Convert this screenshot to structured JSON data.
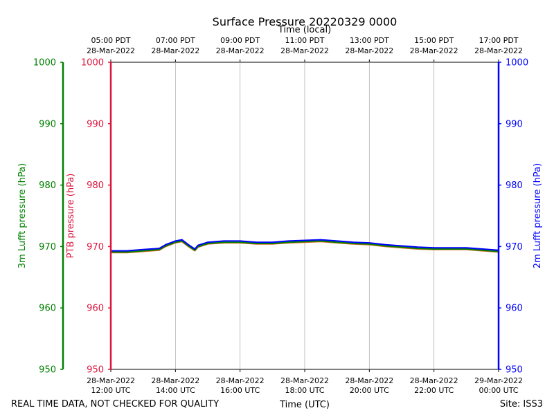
{
  "chart_data": {
    "type": "line",
    "title": "Surface Pressure 20220329 0000",
    "top_axis_title": "Time (local)",
    "xlabel": "Time (UTC)",
    "footer_left": "REAL TIME DATA, NOT CHECKED FOR QUALITY",
    "footer_right": "Site: ISS3",
    "x_range_hours": [
      12,
      24
    ],
    "ylim": [
      950,
      1000
    ],
    "y_ticks": [
      950,
      960,
      970,
      980,
      990,
      1000
    ],
    "x_ticks_utc": [
      {
        "hour": 12,
        "date": "28-Mar-2022",
        "time": "12:00 UTC"
      },
      {
        "hour": 14,
        "date": "28-Mar-2022",
        "time": "14:00 UTC"
      },
      {
        "hour": 16,
        "date": "28-Mar-2022",
        "time": "16:00 UTC"
      },
      {
        "hour": 18,
        "date": "28-Mar-2022",
        "time": "18:00 UTC"
      },
      {
        "hour": 20,
        "date": "28-Mar-2022",
        "time": "20:00 UTC"
      },
      {
        "hour": 22,
        "date": "28-Mar-2022",
        "time": "22:00 UTC"
      },
      {
        "hour": 24,
        "date": "29-Mar-2022",
        "time": "00:00 UTC"
      }
    ],
    "x_ticks_local": [
      {
        "hour": 12,
        "time": "05:00 PDT",
        "date": "28-Mar-2022"
      },
      {
        "hour": 14,
        "time": "07:00 PDT",
        "date": "28-Mar-2022"
      },
      {
        "hour": 16,
        "time": "09:00 PDT",
        "date": "28-Mar-2022"
      },
      {
        "hour": 18,
        "time": "11:00 PDT",
        "date": "28-Mar-2022"
      },
      {
        "hour": 20,
        "time": "13:00 PDT",
        "date": "28-Mar-2022"
      },
      {
        "hour": 22,
        "time": "15:00 PDT",
        "date": "28-Mar-2022"
      },
      {
        "hour": 24,
        "time": "17:00 PDT",
        "date": "28-Mar-2022"
      }
    ],
    "axes": {
      "left_outer": {
        "label": "3m Lufft pressure (hPa)",
        "color": "#008000"
      },
      "left_inner": {
        "label": "PTB pressure (hPa)",
        "color": "#dc143c"
      },
      "right": {
        "label": "2m Lufft pressure (hPa)",
        "color": "#0000ff"
      }
    },
    "series": [
      {
        "name": "PTB pressure",
        "color": "#d2691e",
        "x": [
          12.0,
          12.5,
          13.0,
          13.5,
          13.7,
          14.0,
          14.2,
          14.4,
          14.6,
          14.7,
          15.0,
          15.5,
          16.0,
          16.5,
          17.0,
          17.5,
          18.0,
          18.5,
          19.0,
          19.5,
          20.0,
          20.5,
          21.0,
          21.5,
          22.0,
          22.5,
          23.0,
          23.5,
          24.0
        ],
        "values": [
          969.0,
          969.0,
          969.2,
          969.4,
          970.0,
          970.6,
          970.8,
          970.0,
          969.3,
          969.9,
          970.4,
          970.6,
          970.6,
          970.4,
          970.4,
          970.6,
          970.7,
          970.8,
          970.6,
          970.4,
          970.3,
          970.0,
          969.8,
          969.6,
          969.5,
          969.5,
          969.5,
          969.3,
          969.1
        ]
      },
      {
        "name": "3m Lufft pressure",
        "color": "#008000",
        "x": [
          12.0,
          12.5,
          13.0,
          13.5,
          13.7,
          14.0,
          14.2,
          14.4,
          14.6,
          14.7,
          15.0,
          15.5,
          16.0,
          16.5,
          17.0,
          17.5,
          18.0,
          18.5,
          19.0,
          19.5,
          20.0,
          20.5,
          21.0,
          21.5,
          22.0,
          22.5,
          23.0,
          23.5,
          24.0
        ],
        "values": [
          969.1,
          969.1,
          969.3,
          969.5,
          970.1,
          970.7,
          970.9,
          970.1,
          969.4,
          970.0,
          970.5,
          970.7,
          970.7,
          970.5,
          970.5,
          970.7,
          970.8,
          970.9,
          970.7,
          970.5,
          970.4,
          970.1,
          969.9,
          969.7,
          969.6,
          969.6,
          969.6,
          969.4,
          969.2
        ]
      },
      {
        "name": "2m Lufft pressure",
        "color": "#0000ff",
        "x": [
          12.0,
          12.5,
          13.0,
          13.5,
          13.7,
          14.0,
          14.2,
          14.4,
          14.6,
          14.7,
          15.0,
          15.5,
          16.0,
          16.5,
          17.0,
          17.5,
          18.0,
          18.5,
          19.0,
          19.5,
          20.0,
          20.5,
          21.0,
          21.5,
          22.0,
          22.5,
          23.0,
          23.5,
          24.0
        ],
        "values": [
          969.3,
          969.3,
          969.5,
          969.7,
          970.3,
          970.9,
          971.1,
          970.3,
          969.6,
          970.2,
          970.7,
          970.9,
          970.9,
          970.7,
          970.7,
          970.9,
          971.0,
          971.1,
          970.9,
          970.7,
          970.6,
          970.3,
          970.1,
          969.9,
          969.8,
          969.8,
          969.8,
          969.6,
          969.4
        ]
      }
    ]
  }
}
